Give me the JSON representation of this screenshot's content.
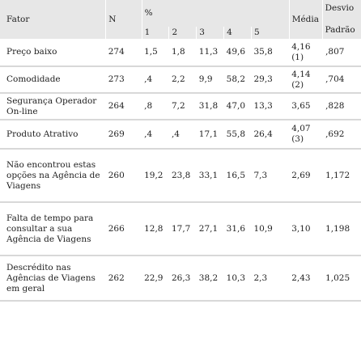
{
  "header": {
    "fator": "Fator",
    "n": "N",
    "pct": "%",
    "cols": [
      "1",
      "2",
      "3",
      "4",
      "5"
    ],
    "media": "Média",
    "desvio_line1": "Desvio",
    "desvio_line2": "Padrão"
  },
  "rows": [
    {
      "fator": "Preço baixo",
      "n": "274",
      "p1": "1,5",
      "p2": "1,8",
      "p3": "11,3",
      "p4": "49,6",
      "p5": "35,8",
      "media": "4,16 (1)",
      "dp": ",807"
    },
    {
      "fator": "Comodidade",
      "n": "273",
      "p1": ",4",
      "p2": "2,2",
      "p3": "9,9",
      "p4": "58,2",
      "p5": "29,3",
      "media": "4,14 (2)",
      "dp": ",704"
    },
    {
      "fator": "Segurança Operador On-line",
      "n": "264",
      "p1": ",8",
      "p2": "7,2",
      "p3": "31,8",
      "p4": "47,0",
      "p5": "13,3",
      "media": "3,65",
      "dp": ",828"
    },
    {
      "fator": "Produto Atrativo",
      "n": "269",
      "p1": ",4",
      "p2": ",4",
      "p3": "17,1",
      "p4": "55,8",
      "p5": "26,4",
      "media": "4,07 (3)",
      "dp": ",692"
    },
    {
      "fator": "Não encontrou estas opções na Agência de Viagens",
      "n": "260",
      "p1": "19,2",
      "p2": "23,8",
      "p3": "33,1",
      "p4": "16,5",
      "p5": "7,3",
      "media": "2,69",
      "dp": "1,172"
    },
    {
      "fator": "Falta de tempo para consultar a sua Agência de Viagens",
      "n": "266",
      "p1": "12,8",
      "p2": "17,7",
      "p3": "27,1",
      "p4": "31,6",
      "p5": "10,9",
      "media": "3,10",
      "dp": "1,198"
    },
    {
      "fator": "Descrédito nas Agências de Viagens em geral",
      "n": "262",
      "p1": "22,9",
      "p2": "26,3",
      "p3": "38,2",
      "p4": "10,3",
      "p5": "2,3",
      "media": "2,43",
      "dp": "1,025"
    }
  ]
}
